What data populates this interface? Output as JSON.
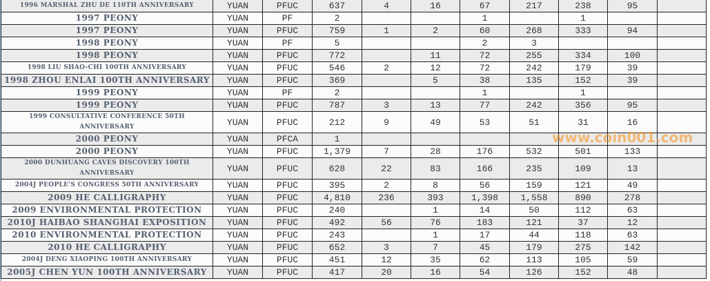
{
  "watermark": "www.coin001.com",
  "colors": {
    "name_text": "#556070",
    "row_alt": "#ebebeb",
    "watermark": "#f59628"
  },
  "rows": [
    {
      "name": "1996 MARSHAL ZHU DE 110TH ANNIVERSARY",
      "unit": "YUAN",
      "grade": "PFUC",
      "total": "637",
      "c": [
        "4",
        "16",
        "67",
        "217",
        "238",
        "95",
        ""
      ],
      "small": true
    },
    {
      "name": "1997 PEONY",
      "unit": "YUAN",
      "grade": "PF",
      "total": "2",
      "c": [
        "",
        "",
        "1",
        "",
        "1",
        "",
        ""
      ]
    },
    {
      "name": "1997 PEONY",
      "unit": "YUAN",
      "grade": "PFUC",
      "total": "759",
      "c": [
        "1",
        "2",
        "60",
        "268",
        "333",
        "94",
        ""
      ]
    },
    {
      "name": "1998 PEONY",
      "unit": "YUAN",
      "grade": "PF",
      "total": "5",
      "c": [
        "",
        "",
        "2",
        "3",
        "",
        "",
        ""
      ]
    },
    {
      "name": "1998 PEONY",
      "unit": "YUAN",
      "grade": "PFUC",
      "total": "772",
      "c": [
        "",
        "11",
        "72",
        "255",
        "334",
        "100",
        ""
      ]
    },
    {
      "name": "1998 LIU SHAO-CHI 100TH ANNIVERSARY",
      "unit": "YUAN",
      "grade": "PFUC",
      "total": "546",
      "c": [
        "2",
        "12",
        "72",
        "242",
        "179",
        "39",
        ""
      ],
      "small": true
    },
    {
      "name": "1998 ZHOU ENLAI 100TH ANNIVERSARY",
      "unit": "YUAN",
      "grade": "PFUC",
      "total": "369",
      "c": [
        "",
        "5",
        "38",
        "135",
        "152",
        "39",
        ""
      ]
    },
    {
      "name": "1999 PEONY",
      "unit": "YUAN",
      "grade": "PF",
      "total": "2",
      "c": [
        "",
        "",
        "1",
        "",
        "1",
        "",
        ""
      ]
    },
    {
      "name": "1999 PEONY",
      "unit": "YUAN",
      "grade": "PFUC",
      "total": "787",
      "c": [
        "3",
        "13",
        "77",
        "242",
        "356",
        "95",
        ""
      ]
    },
    {
      "name": "1999 CONSULTATIVE CONFERENCE 50TH ANNIVERSARY",
      "unit": "YUAN",
      "grade": "PFUC",
      "total": "212",
      "c": [
        "9",
        "49",
        "53",
        "51",
        "31",
        "16",
        ""
      ],
      "small": true,
      "tall": true
    },
    {
      "name": "2000 PEONY",
      "unit": "YUAN",
      "grade": "PFCA",
      "total": "1",
      "c": [
        "",
        "",
        "",
        "",
        "",
        "",
        ""
      ]
    },
    {
      "name": "2000 PEONY",
      "unit": "YUAN",
      "grade": "PFUC",
      "total": "1,379",
      "c": [
        "7",
        "28",
        "176",
        "532",
        "501",
        "133",
        ""
      ]
    },
    {
      "name": "2000 DUNHUANG CAVES DISCOVERY 100TH ANNIVERSARY",
      "unit": "YUAN",
      "grade": "PFUC",
      "total": "628",
      "c": [
        "22",
        "83",
        "166",
        "235",
        "109",
        "13",
        ""
      ],
      "small": true,
      "tall": true
    },
    {
      "name": "2004J PEOPLE'S CONGRESS 50TH ANNIVERSARY",
      "unit": "YUAN",
      "grade": "PFUC",
      "total": "395",
      "c": [
        "2",
        "8",
        "56",
        "159",
        "121",
        "49",
        ""
      ],
      "small": true
    },
    {
      "name": "2009 HE CALLIGRAPHY",
      "unit": "YUAN",
      "grade": "PFUC",
      "total": "4,810",
      "c": [
        "236",
        "393",
        "1,398",
        "1,558",
        "890",
        "278",
        ""
      ]
    },
    {
      "name": "2009 ENVIRONMENTAL PROTECTION",
      "unit": "YUAN",
      "grade": "PFUC",
      "total": "240",
      "c": [
        "",
        "1",
        "14",
        "50",
        "112",
        "63",
        ""
      ]
    },
    {
      "name": "2010J HAIBAO SHANGHAI EXPOSITION",
      "unit": "YUAN",
      "grade": "PFUC",
      "total": "492",
      "c": [
        "56",
        "76",
        "183",
        "121",
        "37",
        "12",
        ""
      ]
    },
    {
      "name": "2010 ENVIRONMENTAL PROTECTION",
      "unit": "YUAN",
      "grade": "PFUC",
      "total": "243",
      "c": [
        "",
        "1",
        "17",
        "44",
        "118",
        "63",
        ""
      ]
    },
    {
      "name": "2010 HE CALLIGRAPHY",
      "unit": "YUAN",
      "grade": "PFUC",
      "total": "652",
      "c": [
        "3",
        "7",
        "45",
        "179",
        "275",
        "142",
        ""
      ]
    },
    {
      "name": "2004J DENG XIAOPING 100TH ANNIVERSARY",
      "unit": "YUAN",
      "grade": "PFUC",
      "total": "451",
      "c": [
        "12",
        "35",
        "62",
        "113",
        "105",
        "59",
        ""
      ],
      "small": true
    },
    {
      "name": "2005J CHEN YUN 100TH ANNIVERSARY",
      "unit": "YUAN",
      "grade": "PFUC",
      "total": "417",
      "c": [
        "20",
        "16",
        "54",
        "126",
        "152",
        "48",
        ""
      ]
    }
  ]
}
